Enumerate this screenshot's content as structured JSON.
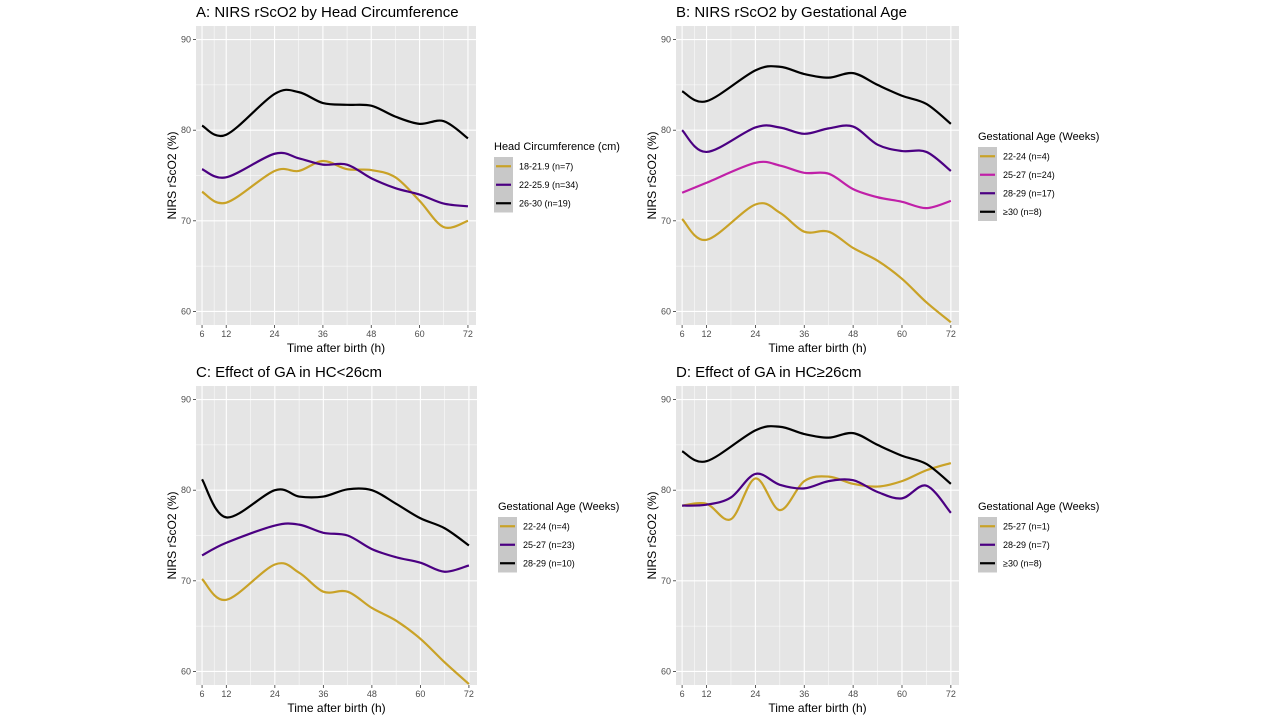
{
  "figure": {
    "colors": {
      "panel_bg": "#E5E5E5",
      "grid": "#FFFFFF",
      "legend_key_bg": "#C8C8C8"
    }
  },
  "chart_data": [
    {
      "type": "line",
      "title": "A: NIRS rScO2 by Head Circumference",
      "xlabel": "Time after birth (h)",
      "ylabel": "NIRS rScO2 (%)",
      "xlim": [
        4.5,
        74
      ],
      "ylim": [
        58.5,
        91.5
      ],
      "xticks": [
        6,
        12,
        24,
        36,
        48,
        60,
        72
      ],
      "yticks": [
        60,
        70,
        80,
        90
      ],
      "grid": true,
      "legend": {
        "title": "Head Circumference (cm)",
        "position": "right"
      },
      "series": [
        {
          "name": "18-21.9 (n=7)",
          "color": "#C9A227",
          "x": [
            6,
            12,
            24,
            30,
            36,
            42,
            48,
            54,
            60,
            66,
            72
          ],
          "y": [
            73.2,
            72.0,
            75.5,
            75.5,
            76.6,
            75.7,
            75.6,
            74.8,
            72.2,
            69.3,
            70.0
          ]
        },
        {
          "name": "22-25.9 (n=34)",
          "color": "#4B0082",
          "x": [
            6,
            12,
            24,
            30,
            36,
            42,
            48,
            54,
            60,
            66,
            72
          ],
          "y": [
            75.7,
            74.8,
            77.4,
            76.9,
            76.2,
            76.2,
            74.7,
            73.6,
            72.9,
            71.9,
            71.6
          ]
        },
        {
          "name": "26-30 (n=19)",
          "color": "#000000",
          "x": [
            6,
            12,
            24,
            30,
            36,
            42,
            48,
            54,
            60,
            66,
            72
          ],
          "y": [
            80.5,
            79.5,
            84.0,
            84.2,
            83.0,
            82.8,
            82.7,
            81.5,
            80.7,
            81.0,
            79.1
          ]
        }
      ]
    },
    {
      "type": "line",
      "title": "B: NIRS rScO2 by Gestational Age",
      "xlabel": "Time after birth (h)",
      "ylabel": "NIRS rScO2 (%)",
      "xlim": [
        4.5,
        74
      ],
      "ylim": [
        58.5,
        91.5
      ],
      "xticks": [
        6,
        12,
        24,
        36,
        48,
        60,
        72
      ],
      "yticks": [
        60,
        70,
        80,
        90
      ],
      "grid": true,
      "legend": {
        "title": "Gestational Age (Weeks)",
        "position": "right"
      },
      "series": [
        {
          "name": "22-24 (n=4)",
          "color": "#C9A227",
          "x": [
            6,
            12,
            24,
            30,
            36,
            42,
            48,
            54,
            60,
            66,
            72
          ],
          "y": [
            70.2,
            67.9,
            71.8,
            70.9,
            68.8,
            68.8,
            67.0,
            65.6,
            63.6,
            61.0,
            58.8
          ]
        },
        {
          "name": "25-27 (n=24)",
          "color": "#C020A8",
          "x": [
            6,
            12,
            24,
            30,
            36,
            42,
            48,
            54,
            60,
            66,
            72
          ],
          "y": [
            73.1,
            74.2,
            76.4,
            76.1,
            75.3,
            75.2,
            73.5,
            72.6,
            72.1,
            71.4,
            72.2
          ]
        },
        {
          "name": "28-29 (n=17)",
          "color": "#4B0082",
          "x": [
            6,
            12,
            24,
            30,
            36,
            42,
            48,
            54,
            60,
            66,
            72
          ],
          "y": [
            80.0,
            77.6,
            80.3,
            80.3,
            79.6,
            80.2,
            80.4,
            78.4,
            77.7,
            77.6,
            75.5
          ]
        },
        {
          "name": "≥30 (n=8)",
          "color": "#000000",
          "x": [
            6,
            12,
            24,
            30,
            36,
            42,
            48,
            54,
            60,
            66,
            72
          ],
          "y": [
            84.3,
            83.2,
            86.6,
            87.0,
            86.2,
            85.8,
            86.3,
            85.0,
            83.8,
            82.9,
            80.7
          ]
        }
      ]
    },
    {
      "type": "line",
      "title": "C: Effect of GA in HC<26cm",
      "xlabel": "Time after birth (h)",
      "ylabel": "NIRS rScO2 (%)",
      "xlim": [
        4.5,
        74
      ],
      "ylim": [
        58.5,
        91.5
      ],
      "xticks": [
        6,
        12,
        24,
        36,
        48,
        60,
        72
      ],
      "yticks": [
        60,
        70,
        80,
        90
      ],
      "grid": true,
      "legend": {
        "title": "Gestational Age (Weeks)",
        "position": "right"
      },
      "series": [
        {
          "name": "22-24 (n=4)",
          "color": "#C9A227",
          "x": [
            6,
            12,
            24,
            30,
            36,
            42,
            48,
            54,
            60,
            66,
            72
          ],
          "y": [
            70.2,
            67.9,
            71.8,
            70.9,
            68.8,
            68.8,
            67.0,
            65.6,
            63.6,
            61.0,
            58.6
          ]
        },
        {
          "name": "25-27 (n=23)",
          "color": "#4B0082",
          "x": [
            6,
            12,
            24,
            30,
            36,
            42,
            48,
            54,
            60,
            66,
            72
          ],
          "y": [
            72.8,
            74.2,
            76.1,
            76.2,
            75.3,
            75.0,
            73.5,
            72.6,
            72.0,
            71.0,
            71.7
          ]
        },
        {
          "name": "28-29 (n=10)",
          "color": "#000000",
          "x": [
            6,
            12,
            24,
            30,
            36,
            42,
            48,
            54,
            60,
            66,
            72
          ],
          "y": [
            81.2,
            77.0,
            80.0,
            79.3,
            79.3,
            80.1,
            80.0,
            78.5,
            76.9,
            75.8,
            73.9
          ]
        }
      ]
    },
    {
      "type": "line",
      "title": "D: Effect of GA in HC≥26cm",
      "xlabel": "Time after birth (h)",
      "ylabel": "NIRS rScO2 (%)",
      "xlim": [
        4.5,
        74
      ],
      "ylim": [
        58.5,
        91.5
      ],
      "xticks": [
        6,
        12,
        24,
        36,
        48,
        60,
        72
      ],
      "yticks": [
        60,
        70,
        80,
        90
      ],
      "grid": true,
      "legend": {
        "title": "Gestational Age (Weeks)",
        "position": "right"
      },
      "series": [
        {
          "name": "25-27 (n=1)",
          "color": "#C9A227",
          "x": [
            6,
            12,
            18,
            24,
            30,
            36,
            42,
            48,
            54,
            60,
            66,
            72
          ],
          "y": [
            78.3,
            78.5,
            76.8,
            81.3,
            77.8,
            81.0,
            81.5,
            80.7,
            80.4,
            81.0,
            82.2,
            83.0
          ]
        },
        {
          "name": "28-29 (n=7)",
          "color": "#4B0082",
          "x": [
            6,
            12,
            18,
            24,
            30,
            36,
            42,
            48,
            54,
            60,
            66,
            72
          ],
          "y": [
            78.3,
            78.4,
            79.2,
            81.8,
            80.6,
            80.2,
            81.0,
            81.1,
            79.8,
            79.1,
            80.5,
            77.5
          ]
        },
        {
          "name": "≥30 (n=8)",
          "color": "#000000",
          "x": [
            6,
            12,
            24,
            30,
            36,
            42,
            48,
            54,
            60,
            66,
            72
          ],
          "y": [
            84.3,
            83.2,
            86.6,
            87.0,
            86.2,
            85.8,
            86.3,
            85.0,
            83.8,
            82.9,
            80.7
          ]
        }
      ]
    }
  ]
}
